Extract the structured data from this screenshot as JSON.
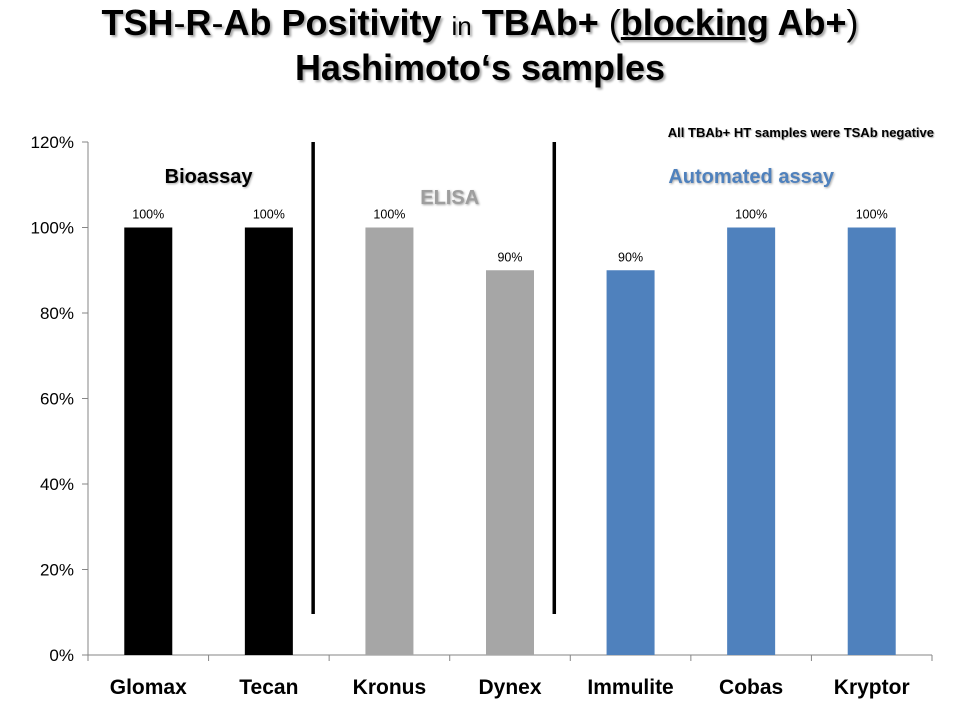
{
  "title": {
    "p1": "TSH",
    "p2": "-",
    "p3": "R",
    "p4": "-",
    "p5": "Ab Positivity ",
    "p6": "in",
    "p7": " TBAb+ ",
    "p8": "(",
    "p9": "blocking",
    "p10": " Ab+",
    "p11": ")",
    "line2": "Hashimoto‘s samples"
  },
  "note": "All TBAb+ HT samples were TSAb negative",
  "groups": [
    {
      "label": "Bioassay",
      "color": "#000000",
      "start": 0,
      "end": 1
    },
    {
      "label": "ELISA",
      "color": "#9e9e9e",
      "start": 2,
      "end": 3
    },
    {
      "label": "Automated assay",
      "color": "#4f81bd",
      "start": 4,
      "end": 6
    }
  ],
  "chart_data": {
    "type": "bar",
    "categories": [
      "Glomax",
      "Tecan",
      "Kronus",
      "Dynex",
      "Immulite",
      "Cobas",
      "Kryptor"
    ],
    "values": [
      100,
      100,
      100,
      90,
      90,
      100,
      100
    ],
    "data_labels": [
      "100%",
      "100%",
      "100%",
      "90%",
      "90%",
      "100%",
      "100%"
    ],
    "bar_colors": [
      "#000000",
      "#000000",
      "#a6a6a6",
      "#a6a6a6",
      "#4f81bd",
      "#4f81bd",
      "#4f81bd"
    ],
    "ylim": [
      0,
      120
    ],
    "yticks": [
      0,
      20,
      40,
      60,
      80,
      100,
      120
    ],
    "ytick_labels": [
      "0%",
      "20%",
      "40%",
      "60%",
      "80%",
      "100%",
      "120%"
    ],
    "xlabel": "",
    "ylabel": "",
    "grid": false,
    "legend": "none",
    "separators_after_category": [
      1,
      3
    ]
  }
}
